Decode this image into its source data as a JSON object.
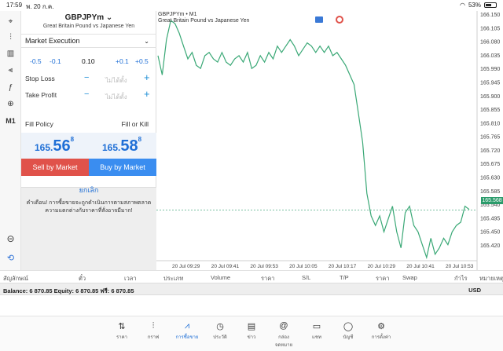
{
  "status_bar": {
    "time": "17:59",
    "date": "พ. 20 ก.ค.",
    "battery": "53%"
  },
  "toolbar": {
    "items": [
      {
        "name": "crosshair-icon",
        "glyph": "⌖"
      },
      {
        "name": "candles-icon",
        "glyph": "⫶"
      },
      {
        "name": "bars-icon",
        "glyph": "▥"
      },
      {
        "name": "indicators-icon",
        "glyph": "⫷"
      },
      {
        "name": "function-icon",
        "glyph": "ƒ"
      },
      {
        "name": "objects-icon",
        "glyph": "⊕"
      },
      {
        "name": "timeframe-label",
        "glyph": "M1"
      }
    ]
  },
  "order": {
    "symbol": "GBPJPYm",
    "symbol_desc": "Great Britain Pound vs Japanese Yen",
    "execution": "Market Execution",
    "volume_steps": [
      "-0.5",
      "-0.1",
      "0.10",
      "+0.1",
      "+0.5"
    ],
    "stop_loss_label": "Stop Loss",
    "take_profit_label": "Take Profit",
    "unset_value": "ไม่ได้ตั้ง",
    "fill_policy_label": "Fill Policy",
    "fill_policy_value": "Fill or Kill",
    "bid": {
      "small": "165.",
      "big": "56",
      "sup": "8"
    },
    "ask": {
      "small": "165.",
      "big": "58",
      "sup": "8"
    },
    "sell_label": "Sell by Market",
    "buy_label": "Buy by Market",
    "cancel_label": "ยกเลิก",
    "warning": "คำเตือน! การซื้อขายจะถูกดำเนินการตามสภาพตลาด ความแตกต่างกับราคาที่สั่งอาจมีมาก!"
  },
  "chart": {
    "title": "GBPJPYm • M1",
    "subtitle": "Great Britain Pound vs Japanese Yen",
    "current_price": "165.568",
    "line_color": "#3aa876"
  },
  "chart_data": {
    "type": "line",
    "y_ticks": [
      "166.150",
      "166.105",
      "166.080",
      "166.035",
      "165.990",
      "165.945",
      "165.900",
      "165.855",
      "165.810",
      "165.765",
      "165.720",
      "165.675",
      "165.630",
      "165.585",
      "165.540",
      "165.495",
      "165.450",
      "165.420"
    ],
    "x_ticks": [
      "20 Jul 09:29",
      "20 Jul 09:41",
      "20 Jul 09:53",
      "20 Jul 10:05",
      "20 Jul 10:17",
      "20 Jul 10:29",
      "20 Jul 10:41",
      "20 Jul 10:53"
    ],
    "ylim": [
      165.41,
      166.165
    ],
    "values": [
      166.05,
      165.99,
      166.1,
      166.16,
      166.15,
      166.12,
      166.08,
      166.04,
      166.06,
      166.02,
      166.01,
      166.05,
      166.06,
      166.04,
      166.03,
      166.06,
      166.03,
      166.02,
      166.04,
      166.05,
      166.03,
      166.06,
      166.01,
      166.02,
      166.05,
      166.03,
      166.06,
      166.04,
      166.08,
      166.06,
      166.08,
      166.1,
      166.08,
      166.05,
      166.07,
      166.09,
      166.08,
      166.06,
      166.08,
      166.06,
      166.08,
      166.05,
      166.06,
      166.04,
      166.02,
      165.99,
      165.96,
      165.87,
      165.78,
      165.62,
      165.55,
      165.52,
      165.55,
      165.5,
      165.54,
      165.58,
      165.5,
      165.45,
      165.56,
      165.58,
      165.52,
      165.5,
      165.46,
      165.42,
      165.48,
      165.43,
      165.45,
      165.48,
      165.46,
      165.5,
      165.52,
      165.53,
      165.58,
      165.57
    ],
    "grid": false
  },
  "positions": {
    "columns": [
      "สัญลักษณ์",
      "ตั๋ว",
      "เวลา",
      "ประเภท",
      "Volume",
      "ราคา",
      "S/L",
      "T/P",
      "ราคา",
      "Swap",
      "กำไร",
      "หมายเหตุ"
    ],
    "balance_text": "Balance: 6 870.85 Equity: 6 870.85 ฟรี: 6 870.85",
    "currency": "USD"
  },
  "nav": {
    "items": [
      {
        "name": "nav-quotes",
        "icon": "⇅",
        "label": "ราคา",
        "active": false
      },
      {
        "name": "nav-chart",
        "icon": "⫶",
        "label": "กราฟ",
        "active": false
      },
      {
        "name": "nav-trade",
        "icon": "⩘",
        "label": "การซื้อขาย",
        "active": true
      },
      {
        "name": "nav-history",
        "icon": "◷",
        "label": "ประวัติ",
        "active": false
      },
      {
        "name": "nav-news",
        "icon": "▤",
        "label": "ข่าว",
        "active": false
      },
      {
        "name": "nav-mailbox",
        "icon": "@",
        "label": "กล่องจดหมาย",
        "active": false
      },
      {
        "name": "nav-chat",
        "icon": "▭",
        "label": "แชท",
        "active": false
      },
      {
        "name": "nav-account",
        "icon": "◯",
        "label": "บัญชี",
        "active": false
      },
      {
        "name": "nav-settings",
        "icon": "⚙",
        "label": "การตั้งค่า",
        "active": false
      }
    ]
  }
}
